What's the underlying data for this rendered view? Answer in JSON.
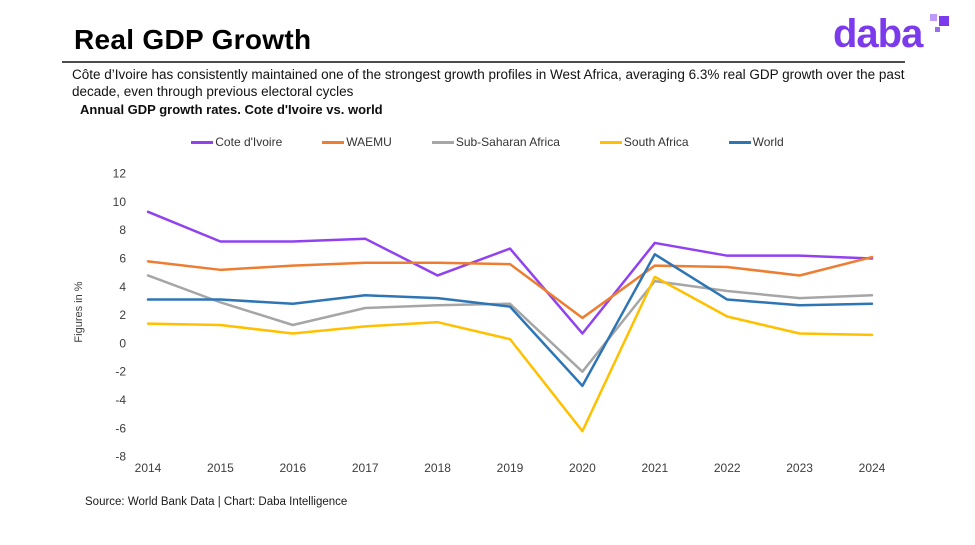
{
  "header": {
    "title": "Real GDP Growth",
    "subtitle": "Côte d’Ivoire has consistently maintained one of the strongest growth profiles in West Africa, averaging 6.3% real GDP growth over the past decade, even through previous electoral cycles",
    "logo_text": "daba",
    "brand_color": "#7b3bec"
  },
  "footer": {
    "source": "Source: World Bank Data | Chart: Daba Intelligence"
  },
  "chart_data": {
    "type": "line",
    "title": "Annual GDP growth rates. Cote d'Ivoire vs. world",
    "xlabel": "",
    "ylabel": "Figures in %",
    "categories": [
      "2014",
      "2015",
      "2016",
      "2017",
      "2018",
      "2019",
      "2020",
      "2021",
      "2022",
      "2023",
      "2024"
    ],
    "yticks": [
      12,
      10,
      8,
      6,
      4,
      2,
      0,
      -2,
      -4,
      -6,
      -8
    ],
    "ylim": [
      -8,
      12
    ],
    "grid": false,
    "legend_position": "top",
    "axis_text_color": "#3d3d3d",
    "series": [
      {
        "name": "Cote d'Ivoire",
        "color": "#9142f0",
        "values": [
          9.3,
          7.2,
          7.2,
          7.4,
          4.8,
          6.7,
          0.7,
          7.1,
          6.2,
          6.2,
          6.0
        ]
      },
      {
        "name": "WAEMU",
        "color": "#ed7d31",
        "values": [
          5.8,
          5.2,
          5.5,
          5.7,
          5.7,
          5.6,
          1.8,
          5.5,
          5.4,
          4.8,
          6.1
        ]
      },
      {
        "name": "Sub-Saharan Africa",
        "color": "#a6a6a6",
        "values": [
          4.8,
          2.9,
          1.3,
          2.5,
          2.7,
          2.8,
          -2.0,
          4.4,
          3.7,
          3.2,
          3.4
        ]
      },
      {
        "name": "South Africa",
        "color": "#ffc000",
        "values": [
          1.4,
          1.3,
          0.7,
          1.2,
          1.5,
          0.3,
          -6.2,
          4.7,
          1.9,
          0.7,
          0.6
        ]
      },
      {
        "name": "World",
        "color": "#2e75b6",
        "values": [
          3.1,
          3.1,
          2.8,
          3.4,
          3.2,
          2.6,
          -3.0,
          6.3,
          3.1,
          2.7,
          2.8
        ]
      }
    ]
  }
}
